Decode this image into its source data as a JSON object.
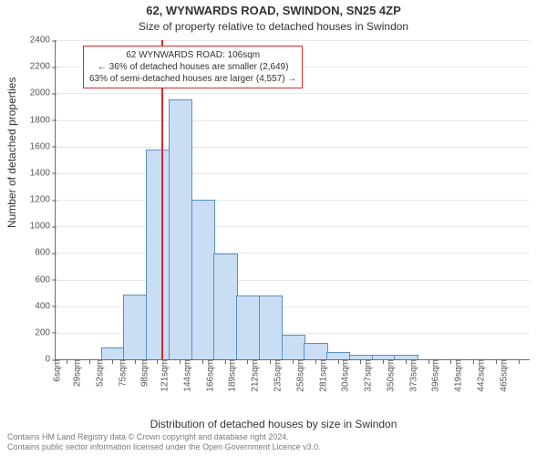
{
  "title": "62, WYNWARDS ROAD, SWINDON, SN25 4ZP",
  "subtitle": "Size of property relative to detached houses in Swindon",
  "ylabel": "Number of detached properties",
  "xlabel": "Distribution of detached houses by size in Swindon",
  "chart": {
    "type": "histogram",
    "ylim_max": 2400,
    "ytick_step": 200,
    "bar_fill": "#c9def4",
    "bar_stroke": "#5a8fc3",
    "grid_color": "#e8e8e8",
    "axis_color": "#6b6b6b",
    "reference_line_color": "#d92a2a",
    "reference_value": 106,
    "x_min": 0,
    "x_max": 477,
    "x_bin_width": 23,
    "x_tick_labels": [
      "6sqm",
      "29sqm",
      "52sqm",
      "75sqm",
      "98sqm",
      "121sqm",
      "144sqm",
      "166sqm",
      "189sqm",
      "212sqm",
      "235sqm",
      "258sqm",
      "281sqm",
      "304sqm",
      "327sqm",
      "350sqm",
      "373sqm",
      "396sqm",
      "419sqm",
      "442sqm",
      "465sqm"
    ],
    "bins": [
      {
        "label": "6sqm",
        "count": 0
      },
      {
        "label": "29sqm",
        "count": 0
      },
      {
        "label": "52sqm",
        "count": 80
      },
      {
        "label": "75sqm",
        "count": 480
      },
      {
        "label": "98sqm",
        "count": 1570
      },
      {
        "label": "121sqm",
        "count": 1950
      },
      {
        "label": "144sqm",
        "count": 1190
      },
      {
        "label": "166sqm",
        "count": 790
      },
      {
        "label": "189sqm",
        "count": 470
      },
      {
        "label": "212sqm",
        "count": 470
      },
      {
        "label": "235sqm",
        "count": 180
      },
      {
        "label": "258sqm",
        "count": 120
      },
      {
        "label": "281sqm",
        "count": 50
      },
      {
        "label": "304sqm",
        "count": 30
      },
      {
        "label": "327sqm",
        "count": 30
      },
      {
        "label": "350sqm",
        "count": 30
      },
      {
        "label": "373sqm",
        "count": 0
      },
      {
        "label": "396sqm",
        "count": 0
      },
      {
        "label": "419sqm",
        "count": 0
      },
      {
        "label": "442sqm",
        "count": 0
      },
      {
        "label": "465sqm",
        "count": 0
      }
    ]
  },
  "annotation": {
    "line1": "62 WYNWARDS ROAD: 106sqm",
    "line2": "← 36% of detached houses are smaller (2,649)",
    "line3": "63% of semi-detached houses are larger (4,557) →",
    "border_color": "#d92a2a",
    "background": "#ffffff",
    "font_size": 10
  },
  "footer": {
    "line1": "Contains HM Land Registry data © Crown copyright and database right 2024.",
    "line2": "Contains public sector information licensed under the Open Government Licence v3.0."
  }
}
